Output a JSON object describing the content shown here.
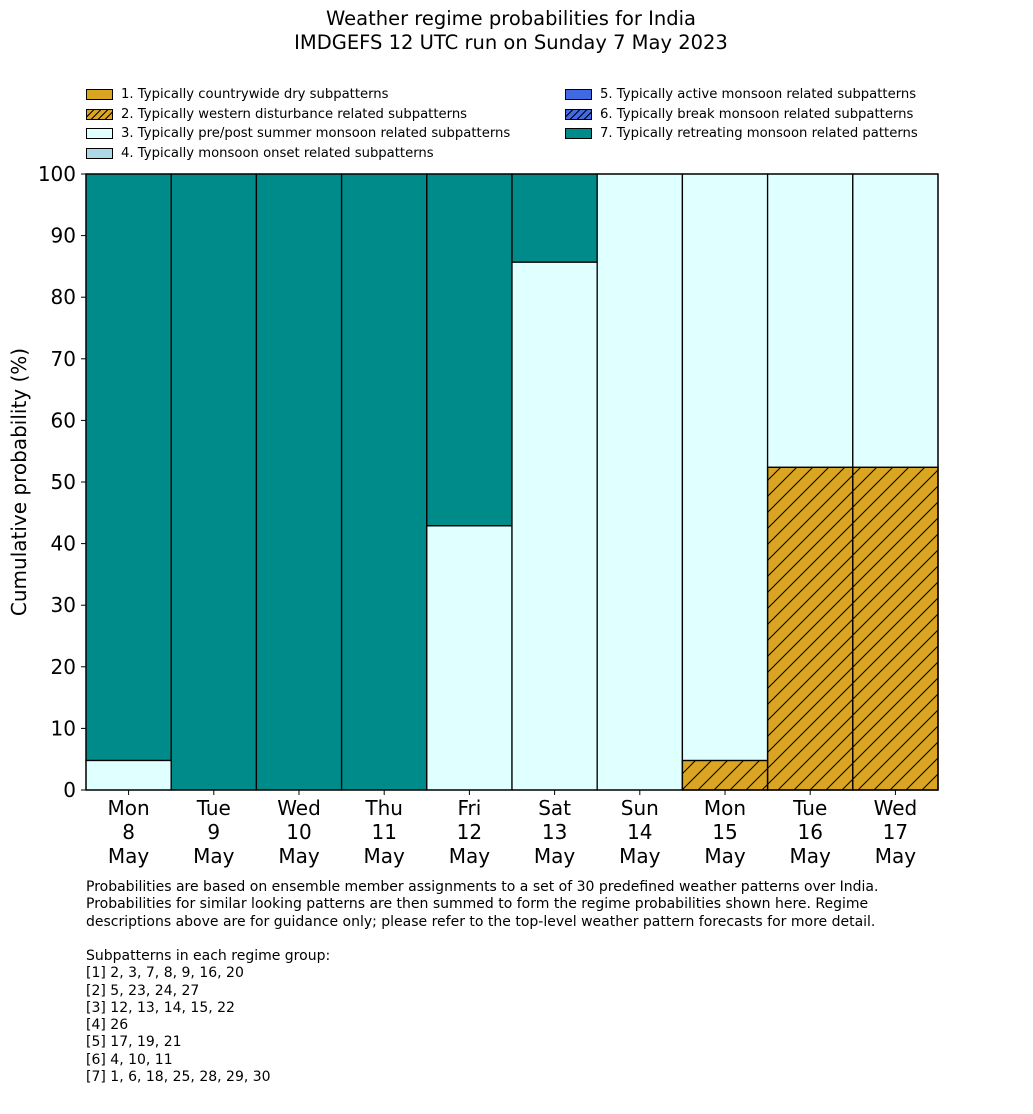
{
  "title": "Weather regime probabilities for India",
  "subtitle": "IMDGEFS 12 UTC run on Sunday 7 May 2023",
  "legend_left": [
    {
      "label": "1. Typically countrywide dry subpatterns",
      "color": "#DAA520",
      "hatch": false
    },
    {
      "label": "2. Typically western disturbance related subpatterns",
      "color": "#DAA520",
      "hatch": true
    },
    {
      "label": "3. Typically pre/post summer monsoon related subpatterns",
      "color": "#E0FFFF",
      "hatch": false
    },
    {
      "label": "4. Typically monsoon onset related subpatterns",
      "color": "#ADD8E6",
      "hatch": false
    }
  ],
  "legend_right": [
    {
      "label": "5. Typically active monsoon related subpatterns",
      "color": "#4169E1",
      "hatch": false
    },
    {
      "label": "6. Typically break monsoon related subpatterns",
      "color": "#4169E1",
      "hatch": true
    },
    {
      "label": "7. Typically retreating monsoon related patterns",
      "color": "#008B8B",
      "hatch": false
    }
  ],
  "chart_data": {
    "type": "bar",
    "stacked": true,
    "ylabel": "Cumulative probability (%)",
    "ylim": [
      0,
      100
    ],
    "yticks": [
      0,
      10,
      20,
      30,
      40,
      50,
      60,
      70,
      80,
      90,
      100
    ],
    "categories": [
      [
        "Mon",
        "8",
        "May"
      ],
      [
        "Tue",
        "9",
        "May"
      ],
      [
        "Wed",
        "10",
        "May"
      ],
      [
        "Thu",
        "11",
        "May"
      ],
      [
        "Fri",
        "12",
        "May"
      ],
      [
        "Sat",
        "13",
        "May"
      ],
      [
        "Sun",
        "14",
        "May"
      ],
      [
        "Mon",
        "15",
        "May"
      ],
      [
        "Tue",
        "16",
        "May"
      ],
      [
        "Wed",
        "17",
        "May"
      ]
    ],
    "series": [
      {
        "name": "1. Typically countrywide dry subpatterns",
        "color": "#DAA520",
        "hatch": false,
        "values": [
          0,
          0,
          0,
          0,
          0,
          0,
          0,
          0,
          0,
          0
        ]
      },
      {
        "name": "2. Typically western disturbance related subpatterns",
        "color": "#DAA520",
        "hatch": true,
        "values": [
          0,
          0,
          0,
          0,
          0,
          0,
          0,
          4.8,
          52.4,
          52.4
        ]
      },
      {
        "name": "3. Typically pre/post summer monsoon related subpatterns",
        "color": "#E0FFFF",
        "hatch": false,
        "values": [
          4.8,
          0,
          0,
          0,
          42.9,
          85.7,
          100,
          95.2,
          47.6,
          47.6
        ]
      },
      {
        "name": "4. Typically monsoon onset related subpatterns",
        "color": "#ADD8E6",
        "hatch": false,
        "values": [
          0,
          0,
          0,
          0,
          0,
          0,
          0,
          0,
          0,
          0
        ]
      },
      {
        "name": "5. Typically active monsoon related subpatterns",
        "color": "#4169E1",
        "hatch": false,
        "values": [
          0,
          0,
          0,
          0,
          0,
          0,
          0,
          0,
          0,
          0
        ]
      },
      {
        "name": "6. Typically break monsoon related subpatterns",
        "color": "#4169E1",
        "hatch": true,
        "values": [
          0,
          0,
          0,
          0,
          0,
          0,
          0,
          0,
          0,
          0
        ]
      },
      {
        "name": "7. Typically retreating monsoon related patterns",
        "color": "#008B8B",
        "hatch": false,
        "values": [
          95.2,
          100,
          100,
          100,
          57.1,
          14.3,
          0,
          0,
          0,
          0
        ]
      }
    ]
  },
  "notes": {
    "paragraph": [
      "Probabilities are based on ensemble member assignments to a set of 30 predefined weather patterns over India.",
      "Probabilities for similar looking patterns are then summed to form the regime probabilities shown here. Regime",
      "descriptions above are for guidance only; please refer to the top-level weather pattern forecasts for more detail."
    ],
    "groups_heading": "Subpatterns in each regime group:",
    "groups": [
      "[1] 2, 3, 7, 8, 9, 16, 20",
      "[2] 5, 23, 24, 27",
      "[3] 12, 13, 14, 15, 22",
      "[4] 26",
      "[5] 17, 19, 21",
      "[6] 4, 10, 11",
      "[7] 1, 6, 18, 25, 28, 29, 30"
    ]
  }
}
